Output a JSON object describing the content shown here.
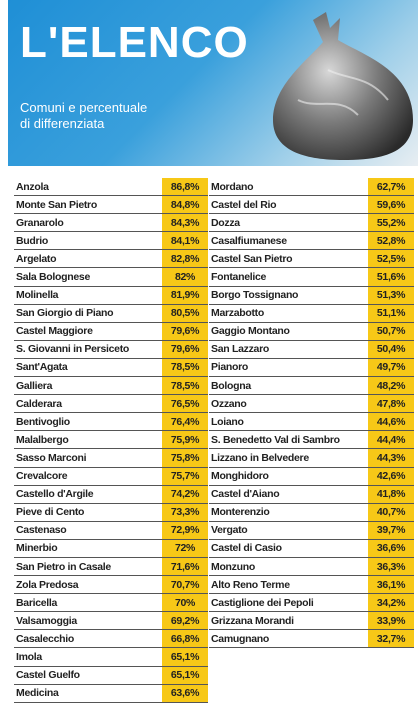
{
  "header": {
    "title": "L'ELENCO",
    "subtitle": [
      "Comuni e percentuale",
      "di differenziata"
    ]
  },
  "table": {
    "left": [
      [
        "Anzola",
        "86,8%"
      ],
      [
        "Monte San Pietro",
        "84,8%"
      ],
      [
        "Granarolo",
        "84,3%"
      ],
      [
        "Budrio",
        "84,1%"
      ],
      [
        "Argelato",
        "82,8%"
      ],
      [
        "Sala Bolognese",
        "82%"
      ],
      [
        "Molinella",
        "81,9%"
      ],
      [
        "San Giorgio di Piano",
        "80,5%"
      ],
      [
        "Castel Maggiore",
        "79,6%"
      ],
      [
        "S. Giovanni in Persiceto",
        "79,6%"
      ],
      [
        "Sant'Agata",
        "78,5%"
      ],
      [
        "Galliera",
        "78,5%"
      ],
      [
        "Calderara",
        "76,5%"
      ],
      [
        "Bentivoglio",
        "76,4%"
      ],
      [
        "Malalbergo",
        "75,9%"
      ],
      [
        "Sasso Marconi",
        "75,8%"
      ],
      [
        "Crevalcore",
        "75,7%"
      ],
      [
        "Castello d'Argile",
        "74,2%"
      ],
      [
        "Pieve di Cento",
        "73,3%"
      ],
      [
        "Castenaso",
        "72,9%"
      ],
      [
        "Minerbio",
        "72%"
      ],
      [
        "San Pietro in Casale",
        "71,6%"
      ],
      [
        "Zola Predosa",
        "70,7%"
      ],
      [
        "Baricella",
        "70%"
      ],
      [
        "Valsamoggia",
        "69,2%"
      ],
      [
        "Casalecchio",
        "66,8%"
      ],
      [
        "Imola",
        "65,1%"
      ],
      [
        "Castel Guelfo",
        "65,1%"
      ],
      [
        "Medicina",
        "63,6%"
      ]
    ],
    "right": [
      [
        "Mordano",
        "62,7%"
      ],
      [
        "Castel del Rio",
        "59,6%"
      ],
      [
        "Dozza",
        "55,2%"
      ],
      [
        "Casalfiumanese",
        "52,8%"
      ],
      [
        "Castel San Pietro",
        "52,5%"
      ],
      [
        "Fontanelice",
        "51,6%"
      ],
      [
        "Borgo Tossignano",
        "51,3%"
      ],
      [
        "Marzabotto",
        "51,1%"
      ],
      [
        "Gaggio Montano",
        "50,7%"
      ],
      [
        "San Lazzaro",
        "50,4%"
      ],
      [
        "Pianoro",
        "49,7%"
      ],
      [
        "Bologna",
        "48,2%"
      ],
      [
        "Ozzano",
        "47,8%"
      ],
      [
        "Loiano",
        "44,6%"
      ],
      [
        "S. Benedetto Val di Sambro",
        "44,4%"
      ],
      [
        "Lizzano in Belvedere",
        "44,3%"
      ],
      [
        "Monghidoro",
        "42,6%"
      ],
      [
        "Castel d'Aiano",
        "41,8%"
      ],
      [
        "Monterenzio",
        "40,7%"
      ],
      [
        "Vergato",
        "39,7%"
      ],
      [
        "Castel di Casio",
        "36,6%"
      ],
      [
        "Monzuno",
        "36,3%"
      ],
      [
        "Alto Reno Terme",
        "36,1%"
      ],
      [
        "Castiglione dei Pepoli",
        "34,2%"
      ],
      [
        "Grizzana Morandi",
        "33,9%"
      ],
      [
        "Camugnano",
        "32,7%"
      ]
    ]
  }
}
